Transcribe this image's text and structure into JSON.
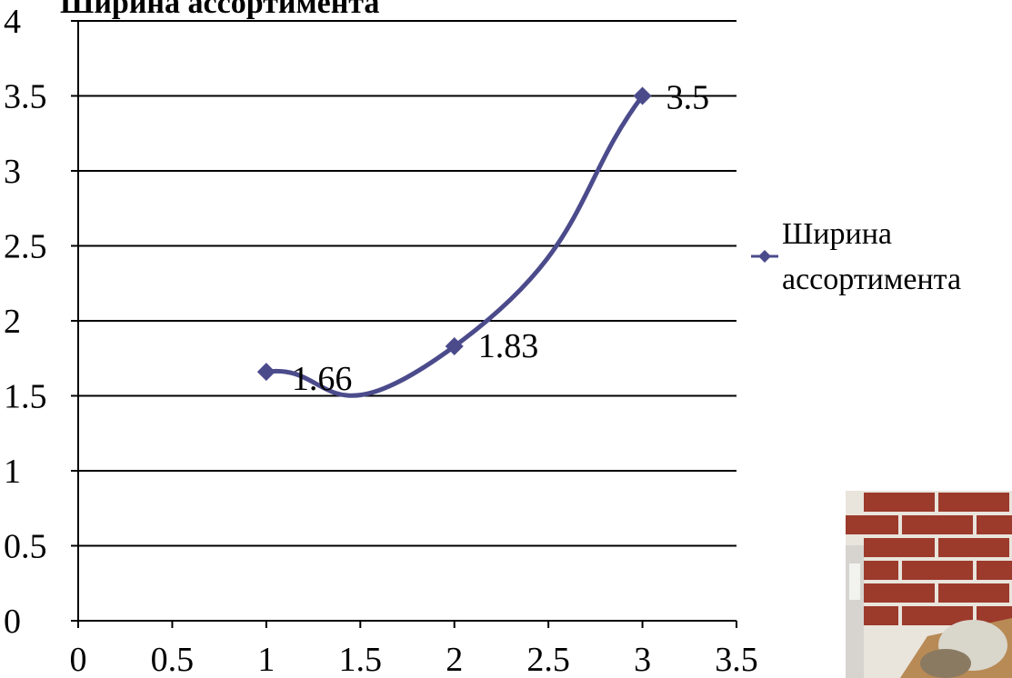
{
  "chart_data": {
    "type": "line",
    "title": "Ширина ассортимента",
    "x": [
      1,
      2,
      3
    ],
    "series": [
      {
        "name": "Ширина ассортимента",
        "values": [
          1.66,
          1.83,
          3.5
        ],
        "labels": [
          "1.66",
          "1.83",
          "3.5"
        ],
        "color": "#4b4b8c"
      }
    ],
    "xlim": [
      0,
      3.5
    ],
    "ylim": [
      0,
      4
    ],
    "xticks": [
      "0",
      "0.5",
      "1",
      "1.5",
      "2",
      "2.5",
      "3",
      "3.5"
    ],
    "yticks": [
      "0",
      "0.5",
      "1",
      "1.5",
      "2",
      "2.5",
      "3",
      "3.5",
      "4"
    ],
    "grid": "horizontal",
    "legend": "right",
    "xlabel": "",
    "ylabel": ""
  },
  "photo": {
    "icon": "brick-wall-photo-icon",
    "colors": {
      "brick": "#9c3a2c",
      "mortar": "#e9e4dc",
      "shelf": "#b88a55"
    }
  }
}
